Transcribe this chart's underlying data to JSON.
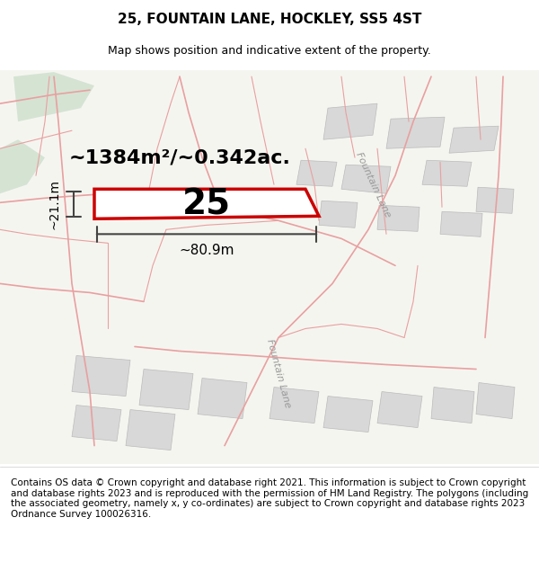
{
  "title": "25, FOUNTAIN LANE, HOCKLEY, SS5 4ST",
  "subtitle": "Map shows position and indicative extent of the property.",
  "footer": "Contains OS data © Crown copyright and database right 2021. This information is subject to Crown copyright and database rights 2023 and is reproduced with the permission of HM Land Registry. The polygons (including the associated geometry, namely x, y co-ordinates) are subject to Crown copyright and database rights 2023 Ordnance Survey 100026316.",
  "area_label": "~1384m²/~0.342ac.",
  "width_label": "~80.9m",
  "height_label": "~21.1m",
  "plot_number": "25",
  "title_fontsize": 11,
  "subtitle_fontsize": 9,
  "footer_fontsize": 7.5,
  "map_bg": "#f5f5f0",
  "plot_outline_color": "#cc0000",
  "plot_fill_color": "#ffffff",
  "road_line_color": "#e8a0a0",
  "property_line_color": "#e8a0a0",
  "green_patch_color": "#c8dcc8",
  "gray_patch_color": "#d8d8d8",
  "road_label_color": "#999999",
  "dim_line_color": "#444444"
}
